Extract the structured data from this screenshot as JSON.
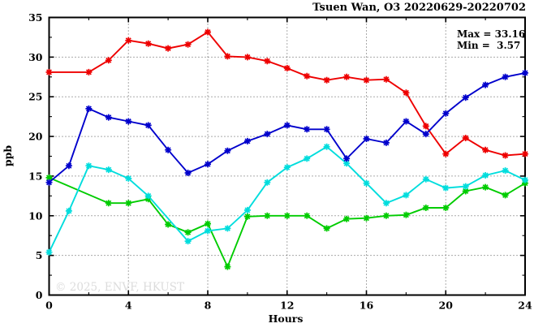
{
  "title": "Tsuen Wan, O3 20220629-20220702",
  "annotation": {
    "max_label": "Max = 33.16",
    "min_label": "Min =  3.57"
  },
  "watermark": "© 2025, ENVF, HKUST",
  "chart_data": {
    "type": "line",
    "title": "Tsuen Wan, O3 20220629-20220702",
    "xlabel": "Hours",
    "ylabel": "ppb",
    "xlim": [
      0,
      24
    ],
    "ylim": [
      0,
      35
    ],
    "x_major_ticks": [
      0,
      4,
      8,
      12,
      16,
      20,
      24
    ],
    "x_tick_labels": [
      "0",
      "4",
      "8",
      "12",
      "16",
      "20",
      "24"
    ],
    "x_minor_step": 2,
    "y_major_ticks": [
      0,
      5,
      10,
      15,
      20,
      25,
      30,
      35
    ],
    "y_tick_labels": [
      "0",
      "5",
      "10",
      "15",
      "20",
      "25",
      "30",
      "35"
    ],
    "y_minor_step": 2.5,
    "grid_x_lines": [
      4,
      8,
      12,
      16,
      20
    ],
    "grid_y_lines": [
      5,
      10,
      15,
      20,
      25,
      30
    ],
    "grid_style": "dotted",
    "legend": "none",
    "stat_max": 33.16,
    "stat_min": 3.57,
    "marker": "asterisk",
    "x": [
      0,
      1,
      2,
      3,
      4,
      5,
      6,
      7,
      8,
      9,
      10,
      11,
      12,
      13,
      14,
      15,
      16,
      17,
      18,
      19,
      20,
      21,
      22,
      23,
      24
    ],
    "series": [
      {
        "name": "series-red",
        "color": "#ee0000",
        "values": [
          28.1,
          null,
          28.1,
          29.6,
          32.1,
          31.7,
          31.1,
          31.6,
          33.16,
          30.1,
          30.0,
          29.5,
          28.6,
          27.6,
          27.1,
          27.5,
          27.1,
          27.2,
          25.5,
          21.3,
          17.8,
          19.8,
          18.3,
          17.6,
          17.8
        ]
      },
      {
        "name": "series-green",
        "color": "#00cc00",
        "values": [
          14.8,
          null,
          null,
          11.6,
          11.6,
          12.1,
          8.9,
          7.9,
          9.0,
          3.57,
          9.9,
          10.0,
          10.0,
          10.0,
          8.4,
          9.6,
          9.7,
          10.0,
          10.1,
          11.0,
          11.0,
          13.1,
          13.6,
          12.6,
          14.1
        ]
      },
      {
        "name": "series-cyan",
        "color": "#00dddd",
        "values": [
          5.4,
          10.6,
          16.3,
          15.8,
          14.7,
          12.5,
          null,
          6.8,
          8.1,
          8.4,
          10.7,
          14.2,
          16.1,
          17.2,
          18.7,
          16.6,
          14.1,
          11.6,
          12.6,
          14.6,
          13.5,
          13.7,
          15.1,
          15.7,
          14.5
        ]
      },
      {
        "name": "series-blue",
        "color": "#0000cc",
        "values": [
          14.2,
          16.3,
          23.5,
          22.4,
          21.9,
          21.4,
          18.3,
          15.4,
          16.5,
          18.2,
          19.4,
          20.3,
          21.4,
          20.9,
          20.9,
          17.2,
          19.7,
          19.2,
          21.9,
          20.3,
          22.9,
          24.9,
          26.5,
          27.5,
          28.0
        ]
      }
    ]
  }
}
